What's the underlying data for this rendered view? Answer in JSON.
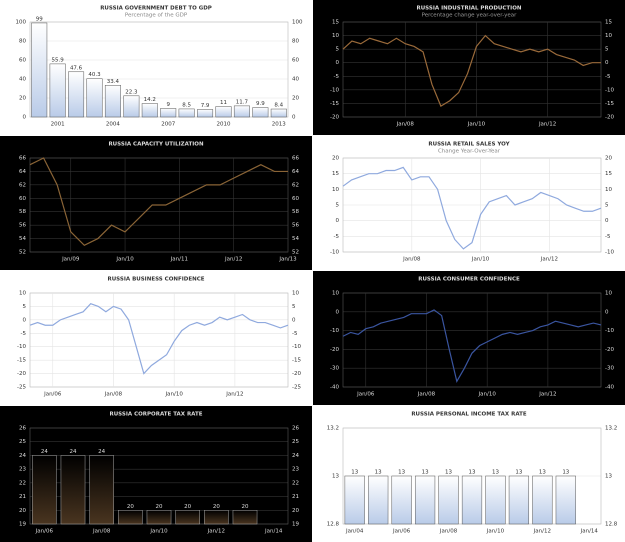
{
  "chart_data": [
    {
      "type": "bar",
      "title": "RUSSIA GOVERNMENT DEBT TO GDP",
      "subtitle": "Percentage of the GDP",
      "background": "#ffffff",
      "color": "#b9cbe8",
      "categories": [
        null,
        "2001",
        null,
        null,
        "2004",
        null,
        null,
        "2007",
        null,
        null,
        "2010",
        null,
        null,
        "2013"
      ],
      "values": [
        99,
        55.9,
        47.6,
        40.3,
        33.4,
        22.3,
        14.2,
        9,
        8.5,
        7.9,
        11,
        11.7,
        9.9,
        8.4
      ],
      "ylim": [
        0,
        100
      ],
      "yticks": [
        0,
        20,
        40,
        60,
        80,
        100
      ],
      "grid": true
    },
    {
      "type": "line",
      "title": "RUSSIA INDUSTRIAL PRODUCTION",
      "subtitle": "Percentage change year-over-year",
      "background": "#000000",
      "color": "#9a6a3a",
      "categories": [
        null,
        null,
        null,
        null,
        null,
        null,
        null,
        "Jan/08",
        null,
        null,
        null,
        null,
        null,
        null,
        null,
        "Jan/10",
        null,
        null,
        null,
        null,
        null,
        null,
        null,
        "Jan/12",
        null,
        null,
        null,
        null,
        null,
        null
      ],
      "values": [
        5,
        8,
        7,
        9,
        8,
        7,
        9,
        7,
        6,
        4,
        -8,
        -16,
        -14,
        -11,
        -4,
        6,
        10,
        7,
        6,
        5,
        4,
        5,
        4,
        5,
        3,
        2,
        1,
        -1,
        0,
        0
      ],
      "ylim": [
        -20,
        15
      ],
      "yticks": [
        -20,
        -15,
        -10,
        -5,
        0,
        5,
        10,
        15
      ],
      "grid": true
    },
    {
      "type": "line",
      "title": "RUSSIA CAPACITY UTILIZATION",
      "background": "#000000",
      "color": "#8a6436",
      "categories": [
        null,
        null,
        null,
        "Jan/09",
        null,
        null,
        null,
        "Jan/10",
        null,
        null,
        null,
        "Jan/11",
        null,
        null,
        null,
        "Jan/12",
        null,
        null,
        null,
        "Jan/13"
      ],
      "values": [
        65,
        66,
        62,
        55,
        53,
        54,
        56,
        55,
        57,
        59,
        59,
        60,
        61,
        62,
        62,
        63,
        64,
        65,
        64,
        64
      ],
      "ylim": [
        52,
        66
      ],
      "yticks": [
        52,
        54,
        56,
        58,
        60,
        62,
        64,
        66
      ],
      "grid": true
    },
    {
      "type": "line",
      "title": "RUSSIA RETAIL SALES YOY",
      "subtitle": "Change Year-Over-Year",
      "background": "#ffffff",
      "color": "#8fa9de",
      "categories": [
        null,
        null,
        null,
        null,
        null,
        null,
        null,
        null,
        "Jan/08",
        null,
        null,
        null,
        null,
        null,
        null,
        null,
        "Jan/10",
        null,
        null,
        null,
        null,
        null,
        null,
        null,
        "Jan/12",
        null,
        null,
        null,
        null,
        null,
        null
      ],
      "values": [
        11,
        13,
        14,
        15,
        15,
        16,
        16,
        17,
        13,
        14,
        14,
        10,
        0,
        -6,
        -9,
        -7,
        2,
        6,
        7,
        8,
        5,
        6,
        7,
        9,
        8,
        7,
        5,
        4,
        3,
        3,
        4
      ],
      "ylim": [
        -10,
        20
      ],
      "yticks": [
        -10,
        -5,
        0,
        5,
        10,
        15,
        20
      ],
      "grid": true
    },
    {
      "type": "line",
      "title": "RUSSIA BUSINESS CONFIDENCE",
      "background": "#ffffff",
      "color": "#8fa9de",
      "categories": [
        null,
        null,
        null,
        "Jan/06",
        null,
        null,
        null,
        null,
        null,
        null,
        null,
        "Jan/08",
        null,
        null,
        null,
        null,
        null,
        null,
        null,
        "Jan/10",
        null,
        null,
        null,
        null,
        null,
        null,
        null,
        "Jan/12",
        null,
        null,
        null,
        null,
        null,
        null,
        null
      ],
      "values": [
        -2,
        -1,
        -2,
        -2,
        0,
        1,
        2,
        3,
        6,
        5,
        3,
        5,
        4,
        0,
        -10,
        -20,
        -17,
        -15,
        -13,
        -8,
        -4,
        -2,
        -1,
        -2,
        -1,
        1,
        0,
        1,
        2,
        0,
        -1,
        -1,
        -2,
        -3,
        -2
      ],
      "ylim": [
        -25,
        10
      ],
      "yticks": [
        -25,
        -20,
        -15,
        -10,
        -5,
        0,
        5,
        10
      ],
      "grid": true
    },
    {
      "type": "line",
      "title": "RUSSIA CONSUMER CONFIDENCE",
      "background": "#000000",
      "color": "#3a55a0",
      "categories": [
        null,
        null,
        null,
        "Jan/06",
        null,
        null,
        null,
        null,
        null,
        null,
        null,
        "Jan/08",
        null,
        null,
        null,
        null,
        null,
        null,
        null,
        "Jan/10",
        null,
        null,
        null,
        null,
        null,
        null,
        null,
        "Jan/12",
        null,
        null,
        null,
        null,
        null,
        null,
        null
      ],
      "values": [
        -13,
        -11,
        -12,
        -9,
        -8,
        -6,
        -5,
        -4,
        -3,
        -1,
        -1,
        -1,
        1,
        -2,
        -20,
        -37,
        -30,
        -22,
        -18,
        -16,
        -14,
        -12,
        -11,
        -12,
        -11,
        -10,
        -8,
        -7,
        -5,
        -6,
        -7,
        -8,
        -7,
        -6,
        -7
      ],
      "ylim": [
        -40,
        10
      ],
      "yticks": [
        -40,
        -30,
        -20,
        -10,
        0,
        10
      ],
      "grid": true
    },
    {
      "type": "bar",
      "title": "RUSSIA CORPORATE TAX RATE",
      "background": "#000000",
      "color": "#4a3520",
      "categories": [
        "Jan/06",
        null,
        "Jan/08",
        null,
        "Jan/10",
        null,
        "Jan/12",
        null,
        "Jan/14"
      ],
      "values": [
        24,
        24,
        24,
        20,
        20,
        20,
        20,
        20,
        null
      ],
      "ylim": [
        19,
        26
      ],
      "yticks": [
        19,
        20,
        21,
        22,
        23,
        24,
        25,
        26
      ],
      "grid": true
    },
    {
      "type": "bar",
      "title": "RUSSIA PERSONAL INCOME TAX RATE",
      "background": "#ffffff",
      "color": "#b9cbe8",
      "categories": [
        "Jan/04",
        null,
        "Jan/06",
        null,
        "Jan/08",
        null,
        "Jan/10",
        null,
        "Jan/12",
        null,
        "Jan/14"
      ],
      "values": [
        13,
        13,
        13,
        13,
        13,
        13,
        13,
        13,
        13,
        13,
        null
      ],
      "ylim": [
        12.8,
        13.2
      ],
      "yticks": [
        12.8,
        13,
        13.2
      ],
      "grid": true
    }
  ]
}
